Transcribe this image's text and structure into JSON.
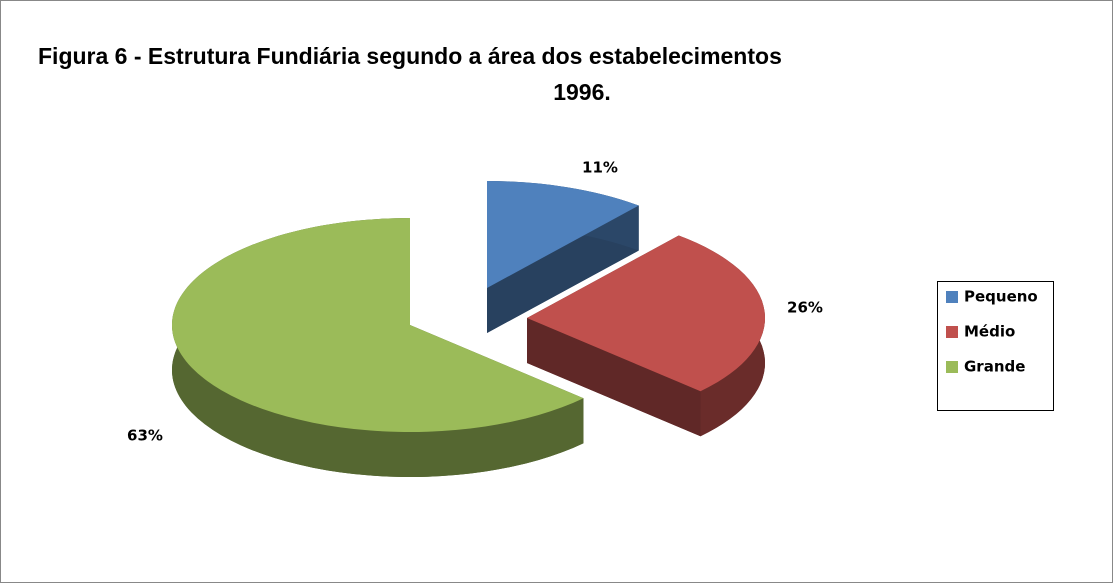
{
  "chart_data": {
    "type": "pie",
    "title": [
      "Figura 6 - Estrutura Fundiária segundo a área dos estabelecimentos",
      "1996."
    ],
    "categories": [
      "Pequeno",
      "Médio",
      "Grande"
    ],
    "values": [
      11,
      26,
      63
    ],
    "value_labels": [
      "11%",
      "26%",
      "63%"
    ],
    "colors": [
      "#4f81bd",
      "#c0504d",
      "#9bbb59"
    ],
    "legend": "right"
  }
}
